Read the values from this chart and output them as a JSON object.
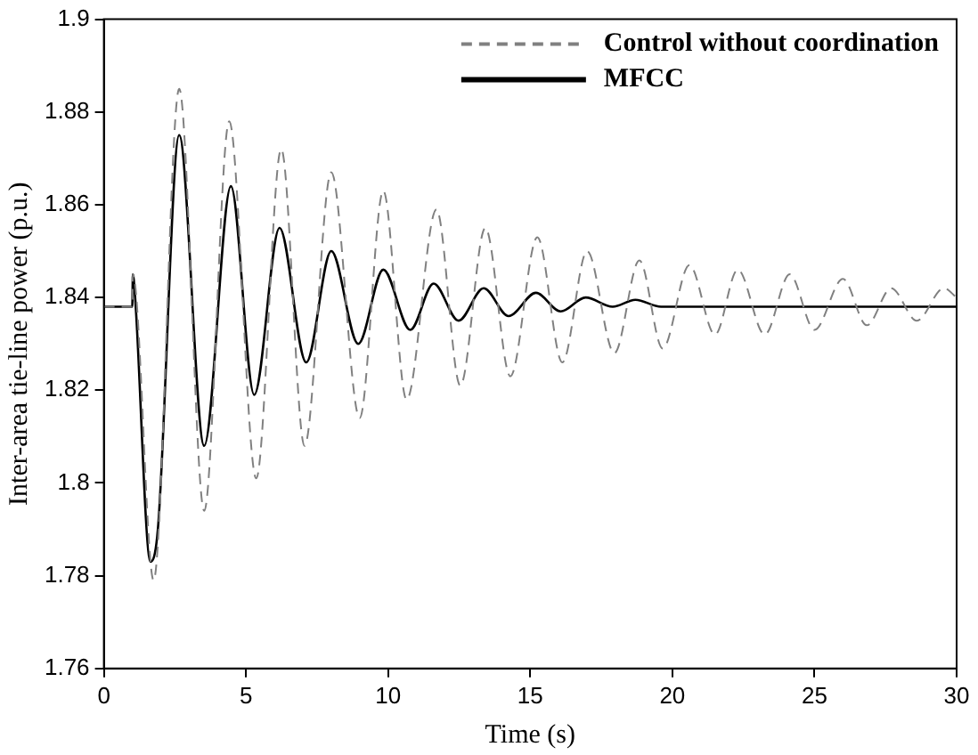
{
  "chart_data": {
    "type": "line",
    "xlabel": "Time (s)",
    "ylabel": "Inter-area tie-line power (p.u.)",
    "xlim": [
      0,
      30
    ],
    "xticks": [
      0,
      5,
      10,
      15,
      20,
      25,
      30
    ],
    "ylim": [
      1.76,
      1.9
    ],
    "yticks": [
      1.76,
      1.78,
      1.8,
      1.82,
      1.84,
      1.86,
      1.88,
      1.9
    ],
    "grid": false,
    "legend": "top right",
    "marker": "none",
    "series": [
      {
        "name": "Control without coordination",
        "color": "#808080",
        "line_style": "dashed",
        "x": [
          0,
          1,
          1.02,
          1.75,
          2.65,
          3.53,
          4.41,
          5.36,
          6.24,
          7.06,
          8.0,
          9.0,
          9.83,
          10.65,
          11.7,
          12.54,
          13.42,
          14.3,
          15.25,
          16.13,
          17.0,
          17.96,
          18.84,
          19.66,
          20.6,
          21.5,
          22.3,
          23.25,
          24.13,
          25.0,
          26.0,
          26.84,
          27.7,
          28.6,
          29.55,
          30
        ],
        "values": [
          1.838,
          1.838,
          1.845,
          1.779,
          1.885,
          1.794,
          1.878,
          1.801,
          1.872,
          1.808,
          1.867,
          1.814,
          1.863,
          1.818,
          1.859,
          1.821,
          1.855,
          1.823,
          1.853,
          1.826,
          1.85,
          1.828,
          1.848,
          1.829,
          1.847,
          1.832,
          1.846,
          1.832,
          1.845,
          1.833,
          1.844,
          1.834,
          1.842,
          1.835,
          1.842,
          1.84
        ]
      },
      {
        "name": "MFCC",
        "color": "#000000",
        "line_style": "solid",
        "x": [
          0,
          1,
          1.02,
          1.1,
          1.64,
          1.9,
          2.65,
          3.53,
          4.47,
          5.29,
          6.18,
          7.12,
          8.0,
          8.95,
          9.83,
          10.78,
          11.6,
          12.48,
          13.36,
          14.24,
          15.2,
          16.07,
          16.95,
          17.9,
          18.7,
          19.6,
          30
        ],
        "values": [
          1.838,
          1.838,
          1.845,
          1.84,
          1.783,
          1.79,
          1.875,
          1.808,
          1.864,
          1.819,
          1.855,
          1.826,
          1.85,
          1.83,
          1.846,
          1.833,
          1.843,
          1.835,
          1.842,
          1.836,
          1.841,
          1.837,
          1.84,
          1.838,
          1.8395,
          1.838,
          1.838
        ]
      }
    ]
  }
}
